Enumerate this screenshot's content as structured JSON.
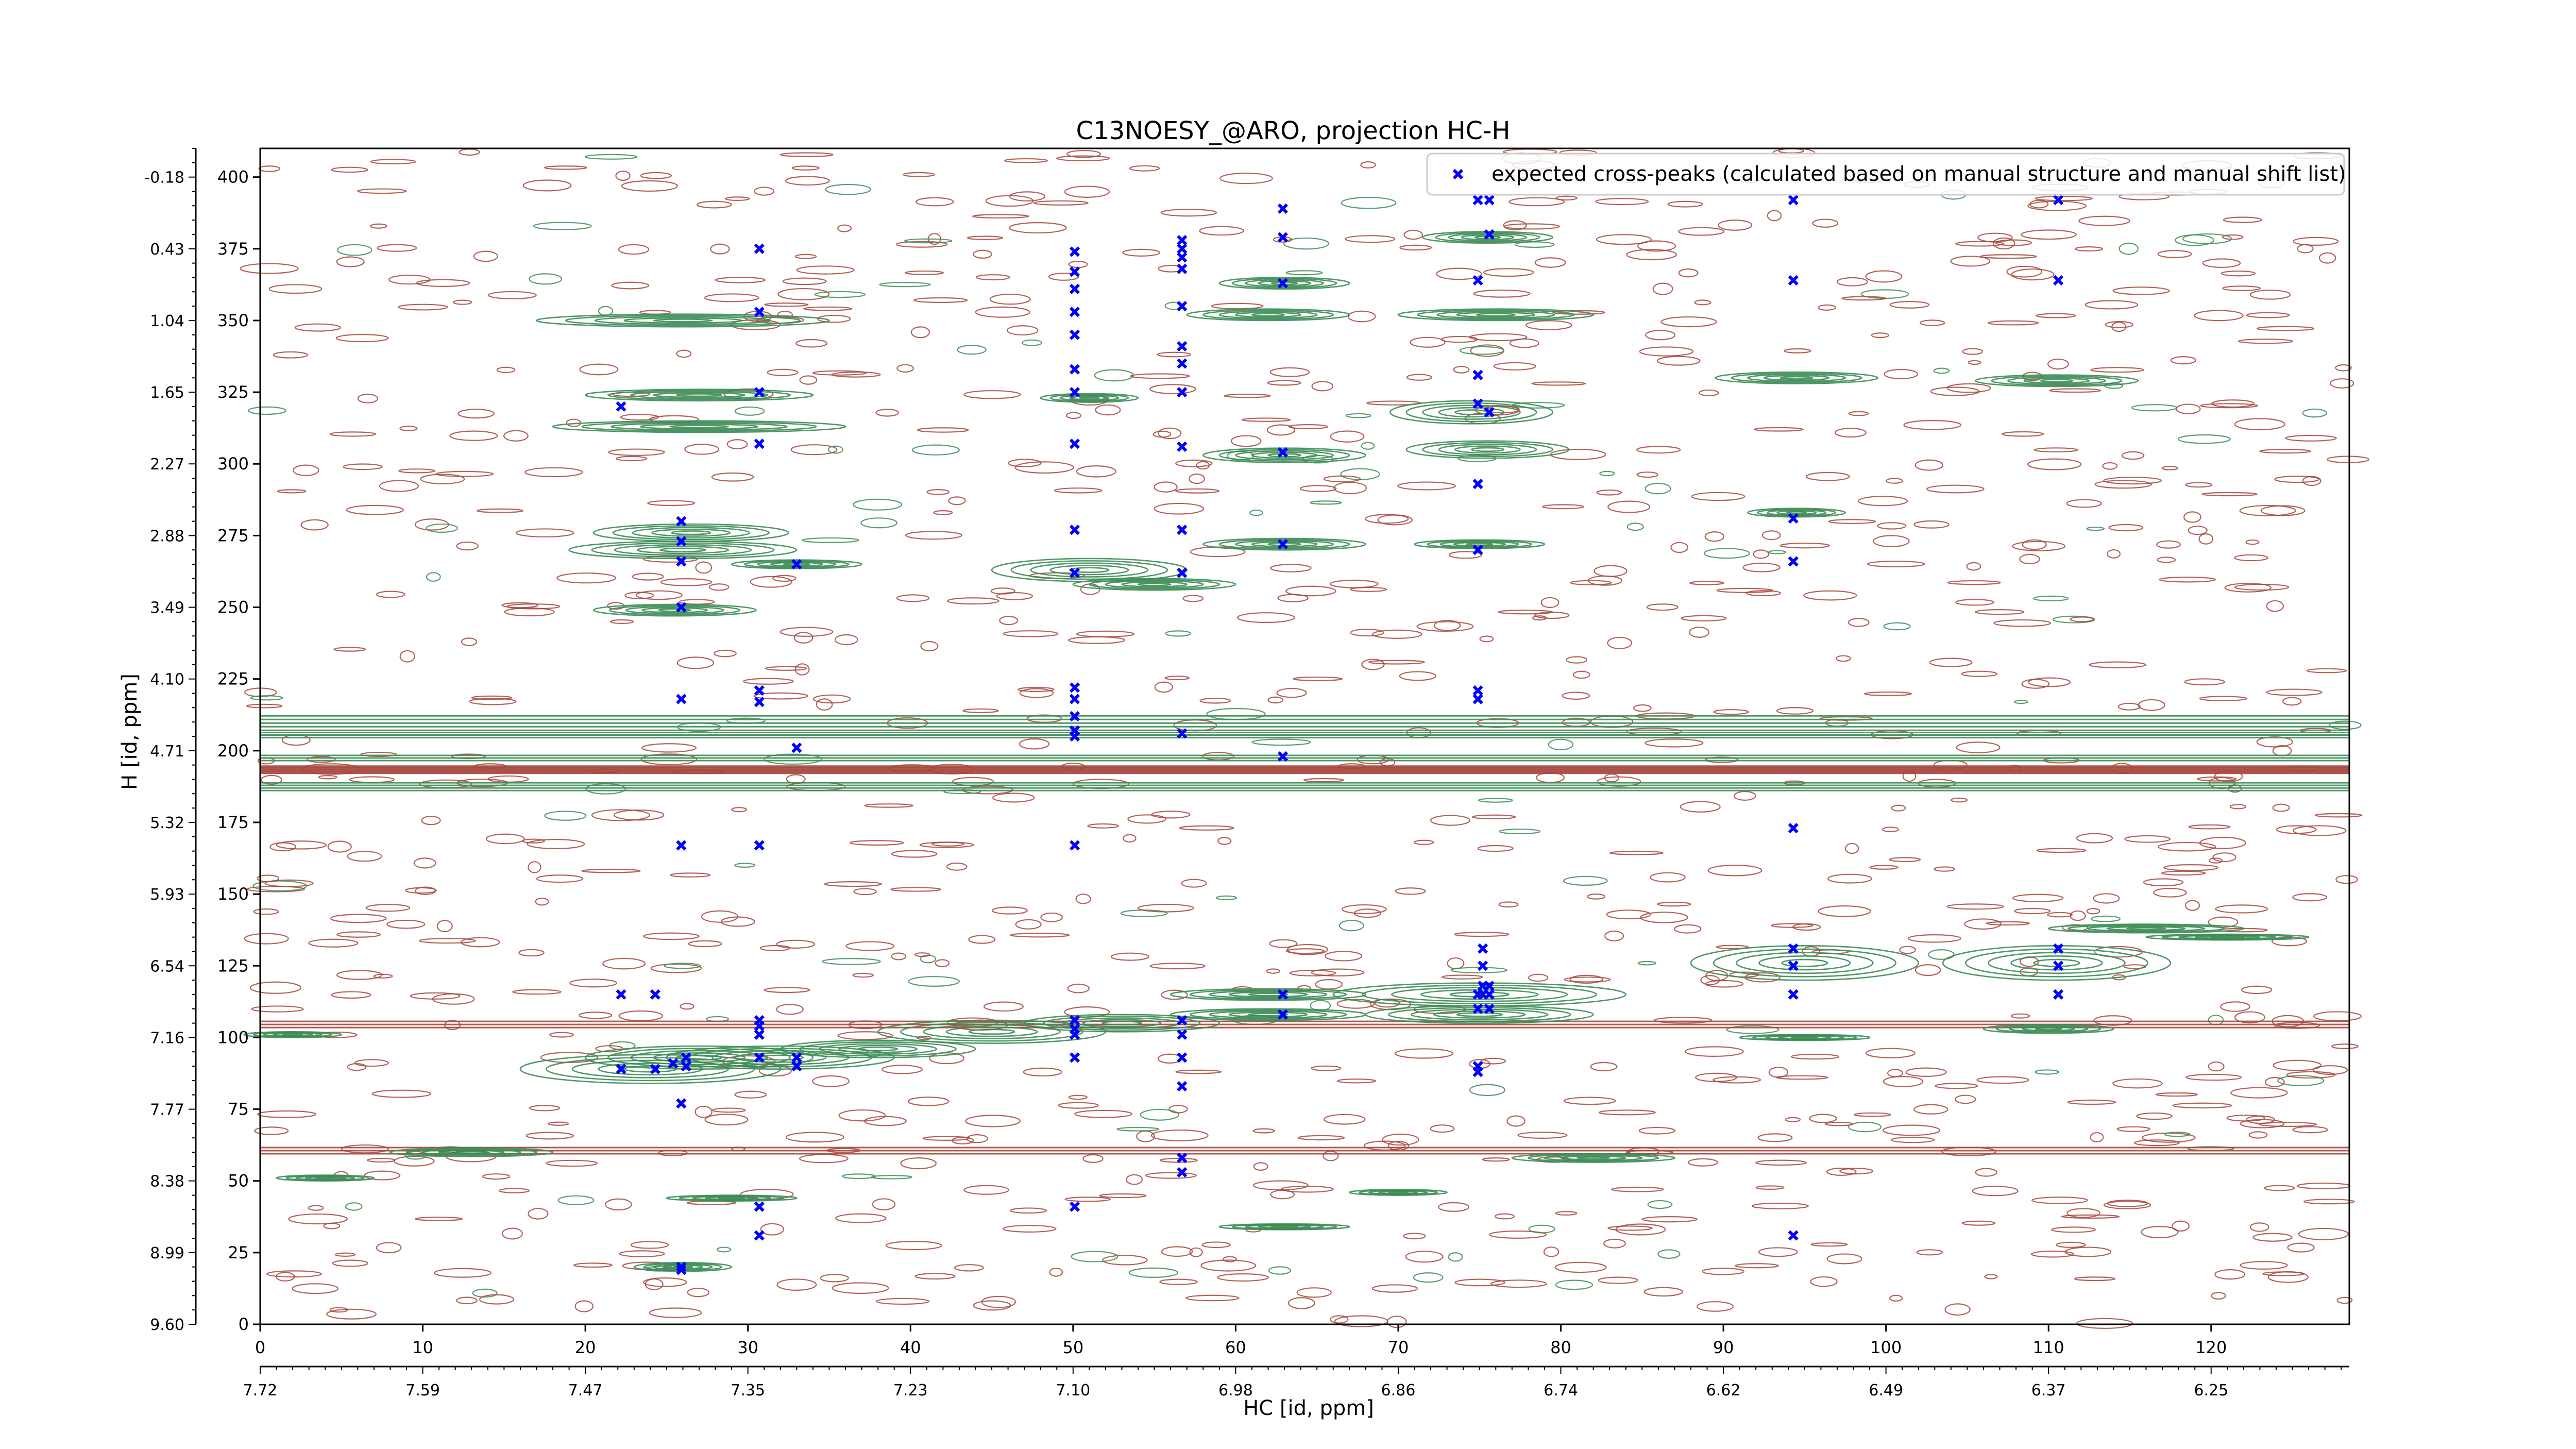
{
  "chart_data": {
    "type": "scatter",
    "title": "C13NOESY_@ARO, projection HC-H",
    "xlabel": "HC [id, ppm]",
    "ylabel": "H [id, ppm]",
    "xlim": [
      0,
      128.5
    ],
    "ylim": [
      0,
      410
    ],
    "x_ticks": [
      0,
      10,
      20,
      30,
      40,
      50,
      60,
      70,
      80,
      90,
      100,
      110,
      120
    ],
    "x_ppm_ticks": [
      "7.72",
      "7.59",
      "7.47",
      "7.35",
      "7.23",
      "7.10",
      "6.98",
      "6.86",
      "6.74",
      "6.62",
      "6.49",
      "6.37",
      "6.25"
    ],
    "y_ticks": [
      0,
      25,
      50,
      75,
      100,
      125,
      150,
      175,
      200,
      225,
      250,
      275,
      300,
      325,
      350,
      375,
      400
    ],
    "y_ppm_ticks": [
      "9.60",
      "8.99",
      "8.38",
      "7.77",
      "7.16",
      "6.54",
      "5.93",
      "5.32",
      "4.71",
      "4.10",
      "3.49",
      "2.88",
      "2.27",
      "1.65",
      "1.04",
      "0.43",
      "-0.18"
    ],
    "grid": false,
    "legend_position": "top-right",
    "series": [
      {
        "name": "expected cross-peaks (calculated based on manual structure and manual shift list)",
        "color": "#0000ff",
        "marker": "x",
        "points": [
          [
            22.2,
            320
          ],
          [
            25.9,
            280
          ],
          [
            25.9,
            273
          ],
          [
            25.9,
            266
          ],
          [
            25.9,
            250
          ],
          [
            25.9,
            218
          ],
          [
            25.9,
            167
          ],
          [
            25.9,
            20
          ],
          [
            25.9,
            19
          ],
          [
            22.2,
            115
          ],
          [
            24.3,
            115
          ],
          [
            22.2,
            89
          ],
          [
            24.3,
            89
          ],
          [
            25.4,
            91
          ],
          [
            26.2,
            93
          ],
          [
            26.2,
            90
          ],
          [
            25.9,
            77
          ],
          [
            30.7,
            375
          ],
          [
            30.7,
            353
          ],
          [
            30.7,
            325
          ],
          [
            30.7,
            307
          ],
          [
            30.7,
            221
          ],
          [
            30.7,
            217
          ],
          [
            30.7,
            167
          ],
          [
            30.7,
            106
          ],
          [
            30.7,
            104
          ],
          [
            30.7,
            101
          ],
          [
            30.7,
            93
          ],
          [
            30.7,
            41
          ],
          [
            30.7,
            31
          ],
          [
            33.0,
            265
          ],
          [
            33.0,
            93
          ],
          [
            33.0,
            90
          ],
          [
            33.0,
            201
          ],
          [
            50.1,
            374
          ],
          [
            50.1,
            367
          ],
          [
            50.1,
            361
          ],
          [
            50.1,
            353
          ],
          [
            50.1,
            345
          ],
          [
            50.1,
            333
          ],
          [
            50.1,
            325
          ],
          [
            50.1,
            307
          ],
          [
            50.1,
            277
          ],
          [
            50.1,
            262
          ],
          [
            50.1,
            222
          ],
          [
            50.1,
            218
          ],
          [
            50.1,
            212
          ],
          [
            50.1,
            207
          ],
          [
            50.1,
            205
          ],
          [
            50.1,
            167
          ],
          [
            50.1,
            106
          ],
          [
            50.1,
            103
          ],
          [
            50.1,
            101
          ],
          [
            50.1,
            93
          ],
          [
            50.1,
            41
          ],
          [
            56.7,
            378
          ],
          [
            56.7,
            375
          ],
          [
            56.7,
            372
          ],
          [
            56.7,
            368
          ],
          [
            56.7,
            355
          ],
          [
            56.7,
            341
          ],
          [
            56.7,
            335
          ],
          [
            56.7,
            325
          ],
          [
            56.7,
            306
          ],
          [
            56.7,
            277
          ],
          [
            56.7,
            262
          ],
          [
            56.7,
            206
          ],
          [
            56.7,
            106
          ],
          [
            56.7,
            101
          ],
          [
            56.7,
            93
          ],
          [
            56.7,
            83
          ],
          [
            56.7,
            58
          ],
          [
            56.7,
            53
          ],
          [
            62.9,
            389
          ],
          [
            62.9,
            379
          ],
          [
            62.9,
            363
          ],
          [
            62.9,
            304
          ],
          [
            62.9,
            272
          ],
          [
            62.9,
            198
          ],
          [
            62.9,
            115
          ],
          [
            62.9,
            108
          ],
          [
            74.9,
            392
          ],
          [
            74.9,
            364
          ],
          [
            74.9,
            331
          ],
          [
            74.9,
            321
          ],
          [
            74.9,
            293
          ],
          [
            74.9,
            270
          ],
          [
            74.9,
            221
          ],
          [
            74.9,
            218
          ],
          [
            74.9,
            115
          ],
          [
            74.9,
            110
          ],
          [
            74.9,
            90
          ],
          [
            74.9,
            88
          ],
          [
            75.2,
            131
          ],
          [
            75.2,
            125
          ],
          [
            75.2,
            118
          ],
          [
            75.2,
            115
          ],
          [
            75.6,
            392
          ],
          [
            75.6,
            380
          ],
          [
            75.6,
            318
          ],
          [
            75.6,
            118
          ],
          [
            75.6,
            115
          ],
          [
            75.6,
            110
          ],
          [
            94.3,
            392
          ],
          [
            94.3,
            364
          ],
          [
            94.3,
            281
          ],
          [
            94.3,
            266
          ],
          [
            94.3,
            173
          ],
          [
            94.3,
            131
          ],
          [
            94.3,
            125
          ],
          [
            94.3,
            115
          ],
          [
            94.3,
            31
          ],
          [
            110.6,
            392
          ],
          [
            110.6,
            364
          ],
          [
            110.6,
            131
          ],
          [
            110.6,
            125
          ],
          [
            110.6,
            115
          ]
        ]
      }
    ],
    "contours_positive_color": "#3c8c55",
    "contours_negative_color": "#a5463c"
  }
}
